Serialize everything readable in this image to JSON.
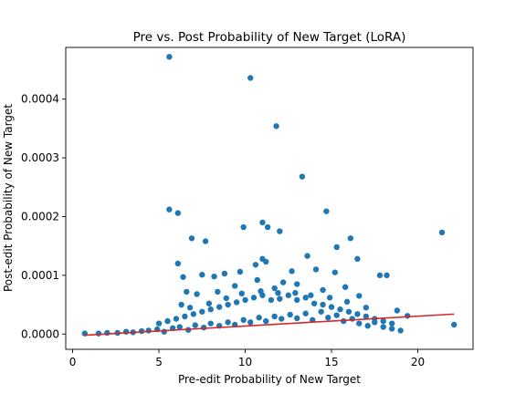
{
  "chart_data": {
    "type": "scatter",
    "title": "Pre vs. Post Probability of New Target (LoRA)",
    "xlabel": "Pre-edit Probability of New Target",
    "ylabel": "Post-edit Probability of New Target",
    "xlim": [
      -0.4,
      23.2
    ],
    "ylim": [
      -2.6e-05,
      0.000488
    ],
    "x_ticks": [
      0,
      5,
      10,
      15,
      20
    ],
    "x_tick_labels": [
      "0",
      "5",
      "10",
      "15",
      "20"
    ],
    "y_ticks": [
      0,
      0.0001,
      0.0002,
      0.0003,
      0.0004
    ],
    "y_tick_labels": [
      "0.0000",
      "0.0001",
      "0.0002",
      "0.0003",
      "0.0004"
    ],
    "grid": false,
    "legend": "none",
    "colors": {
      "points": "#1f77b4",
      "trend": "#d62728"
    },
    "series": [
      {
        "points": [
          [
            5.6,
            0.000472
          ],
          [
            10.3,
            0.000436
          ],
          [
            11.8,
            0.000354
          ],
          [
            13.3,
            0.000268
          ],
          [
            5.6,
            0.000212
          ],
          [
            6.1,
            0.000206
          ],
          [
            14.7,
            0.000209
          ],
          [
            11.0,
            0.00019
          ],
          [
            9.9,
            0.000182
          ],
          [
            11.3,
            0.000182
          ],
          [
            21.4,
            0.000173
          ],
          [
            6.9,
            0.000163
          ],
          [
            7.7,
            0.000158
          ],
          [
            16.1,
            0.000163
          ],
          [
            12.0,
            0.000175
          ],
          [
            15.3,
            0.000148
          ],
          [
            11.0,
            0.000128
          ],
          [
            10.6,
            0.000118
          ],
          [
            11.2,
            0.000123
          ],
          [
            13.6,
            0.000133
          ],
          [
            16.5,
            0.000128
          ],
          [
            6.1,
            0.00012
          ],
          [
            9.7,
            0.000106
          ],
          [
            8.8,
            0.000103
          ],
          [
            8.2,
            9.8e-05
          ],
          [
            6.4,
            9.7e-05
          ],
          [
            7.5,
            0.000101
          ],
          [
            12.7,
            0.000107
          ],
          [
            14.1,
            0.00011
          ],
          [
            15.2,
            0.000105
          ],
          [
            17.8,
            0.0001
          ],
          [
            18.2,
            0.0001
          ],
          [
            19.4,
            3.1e-05
          ],
          [
            22.1,
            1.6e-05
          ],
          [
            17.0,
            4.5e-05
          ],
          [
            18.8,
            4e-05
          ],
          [
            14.5,
            7.5e-05
          ],
          [
            13.0,
            8.5e-05
          ],
          [
            11.7,
            7.8e-05
          ],
          [
            9.4,
            8.2e-05
          ],
          [
            8.4,
            7.2e-05
          ],
          [
            7.2,
            6.8e-05
          ],
          [
            6.6,
            7.2e-05
          ],
          [
            6.3,
            5e-05
          ],
          [
            10.7,
            9.2e-05
          ],
          [
            12.2,
            8.8e-05
          ],
          [
            15.8,
            8e-05
          ],
          [
            16.6,
            6.5e-05
          ],
          [
            0.7,
            1e-06
          ],
          [
            1.5,
            1e-06
          ],
          [
            2.0,
            2e-06
          ],
          [
            2.6,
            2e-06
          ],
          [
            3.1,
            4e-06
          ],
          [
            3.5,
            3e-06
          ],
          [
            4.0,
            5e-06
          ],
          [
            4.4,
            6e-06
          ],
          [
            4.9,
            8e-06
          ],
          [
            5.3,
            4e-06
          ],
          [
            5.8,
            1e-05
          ],
          [
            6.2,
            1.2e-05
          ],
          [
            6.7,
            7e-06
          ],
          [
            7.1,
            1.5e-05
          ],
          [
            7.6,
            1.1e-05
          ],
          [
            8.0,
            1.8e-05
          ],
          [
            8.5,
            1.4e-05
          ],
          [
            9.0,
            2e-05
          ],
          [
            9.4,
            1.6e-05
          ],
          [
            9.9,
            2.4e-05
          ],
          [
            10.3,
            2e-05
          ],
          [
            10.8,
            2.8e-05
          ],
          [
            11.2,
            2.2e-05
          ],
          [
            11.7,
            3e-05
          ],
          [
            12.1,
            2.6e-05
          ],
          [
            12.6,
            3.3e-05
          ],
          [
            13.0,
            2.7e-05
          ],
          [
            13.5,
            3.5e-05
          ],
          [
            13.9,
            2.4e-05
          ],
          [
            14.4,
            3.8e-05
          ],
          [
            14.8,
            2.8e-05
          ],
          [
            15.3,
            3.2e-05
          ],
          [
            15.7,
            2.2e-05
          ],
          [
            16.2,
            2.6e-05
          ],
          [
            16.6,
            1.8e-05
          ],
          [
            17.1,
            1.4e-05
          ],
          [
            17.5,
            2e-05
          ],
          [
            18.0,
            1.2e-05
          ],
          [
            18.5,
            9e-06
          ],
          [
            19.0,
            6e-06
          ],
          [
            5.0,
            1.8e-05
          ],
          [
            5.5,
            2.2e-05
          ],
          [
            6.0,
            2.6e-05
          ],
          [
            6.5,
            3e-05
          ],
          [
            7.0,
            3.4e-05
          ],
          [
            7.5,
            3.8e-05
          ],
          [
            8.0,
            4.2e-05
          ],
          [
            8.5,
            4.6e-05
          ],
          [
            9.0,
            5e-05
          ],
          [
            9.5,
            5.4e-05
          ],
          [
            10.0,
            5.8e-05
          ],
          [
            10.5,
            6.2e-05
          ],
          [
            11.0,
            6.6e-05
          ],
          [
            11.5,
            5.8e-05
          ],
          [
            12.0,
            6e-05
          ],
          [
            12.5,
            6.6e-05
          ],
          [
            13.0,
            5.8e-05
          ],
          [
            13.5,
            6.2e-05
          ],
          [
            14.0,
            5.2e-05
          ],
          [
            14.5,
            5e-05
          ],
          [
            15.0,
            4.6e-05
          ],
          [
            15.5,
            4.2e-05
          ],
          [
            16.0,
            3.8e-05
          ],
          [
            16.5,
            3.4e-05
          ],
          [
            17.0,
            3e-05
          ],
          [
            17.5,
            2.6e-05
          ],
          [
            18.0,
            2.2e-05
          ],
          [
            18.5,
            1.8e-05
          ],
          [
            6.8,
            4.5e-05
          ],
          [
            7.9,
            5.2e-05
          ],
          [
            8.9,
            6.1e-05
          ],
          [
            9.8,
            6.9e-05
          ],
          [
            10.9,
            7.3e-05
          ],
          [
            11.9,
            7e-05
          ],
          [
            12.9,
            7e-05
          ],
          [
            13.8,
            6.6e-05
          ],
          [
            14.9,
            6.2e-05
          ],
          [
            15.9,
            5.5e-05
          ]
        ]
      }
    ],
    "trendline": {
      "x": [
        0.7,
        22.1
      ],
      "y": [
        -2e-06,
        3.4e-05
      ]
    }
  }
}
